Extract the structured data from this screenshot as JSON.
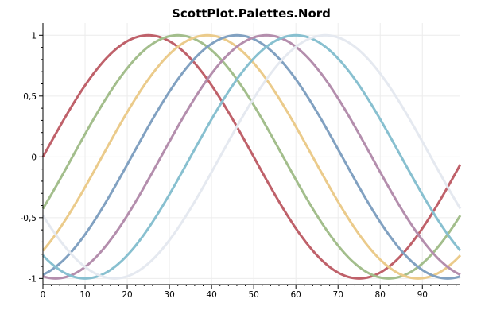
{
  "chart_data": {
    "type": "line",
    "title": "ScottPlot.Palettes.Nord",
    "xlabel": "",
    "ylabel": "",
    "xlim": [
      0,
      99
    ],
    "ylim": [
      -1.05,
      1.1
    ],
    "x_ticks": [
      0,
      10,
      20,
      30,
      40,
      50,
      60,
      70,
      80,
      90
    ],
    "x_tick_labels": [
      "0",
      "10",
      "20",
      "30",
      "40",
      "50",
      "60",
      "70",
      "80",
      "90"
    ],
    "y_ticks": [
      1,
      0.5,
      0,
      -0.5,
      -1
    ],
    "y_tick_labels": [
      "1",
      "0,5",
      "0",
      "-0,5",
      "-1"
    ],
    "grid": true,
    "legend": "none",
    "x_start": 0,
    "x_end": 99,
    "x_step": 1,
    "series": [
      {
        "color": "#bf616a",
        "function": "sin",
        "period": 100,
        "phase_shift_x": 0
      },
      {
        "color": "#a3be8c",
        "function": "sin",
        "period": 100,
        "phase_shift_x": 7
      },
      {
        "color": "#ebcb8b",
        "function": "sin",
        "period": 100,
        "phase_shift_x": 14
      },
      {
        "color": "#81a1c1",
        "function": "sin",
        "period": 100,
        "phase_shift_x": 21
      },
      {
        "color": "#b48ead",
        "function": "sin",
        "period": 100,
        "phase_shift_x": 28
      },
      {
        "color": "#88c0d0",
        "function": "sin",
        "period": 100,
        "phase_shift_x": 35
      },
      {
        "color": "#e5e9f0",
        "function": "sin",
        "period": 100,
        "phase_shift_x": 42
      }
    ]
  }
}
